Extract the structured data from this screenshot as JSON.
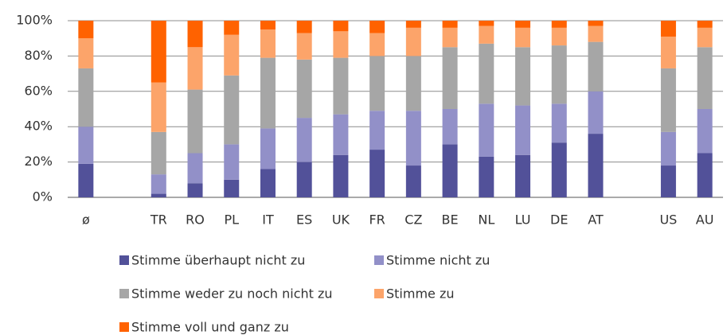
{
  "chart_data": {
    "type": "bar",
    "stacked": true,
    "categories": [
      "ø",
      null,
      "TR",
      "RO",
      "PL",
      "IT",
      "ES",
      "UK",
      "FR",
      "CZ",
      "BE",
      "NL",
      "LU",
      "DE",
      "AT",
      null,
      "US",
      "AU"
    ],
    "series": [
      {
        "name": "Stimme überhaupt nicht zu",
        "color": "#525199",
        "values": [
          19,
          null,
          2,
          8,
          10,
          16,
          20,
          24,
          27,
          18,
          30,
          23,
          24,
          31,
          36,
          null,
          18,
          25
        ]
      },
      {
        "name": "Stimme nicht zu",
        "color": "#9290c8",
        "values": [
          21,
          null,
          11,
          17,
          20,
          23,
          25,
          23,
          22,
          31,
          20,
          30,
          28,
          22,
          24,
          null,
          19,
          25
        ]
      },
      {
        "name": "Stimme weder zu noch nicht zu",
        "color": "#a6a6a6",
        "values": [
          33,
          null,
          24,
          36,
          39,
          40,
          33,
          32,
          31,
          31,
          35,
          34,
          33,
          33,
          28,
          null,
          36,
          35
        ]
      },
      {
        "name": "Stimme zu",
        "color": "#fca46a",
        "values": [
          17,
          null,
          28,
          24,
          23,
          16,
          15,
          15,
          13,
          16,
          11,
          10,
          11,
          10,
          9,
          null,
          18,
          11
        ]
      },
      {
        "name": "Stimme voll und ganz zu",
        "color": "#ff6200",
        "values": [
          10,
          null,
          35,
          15,
          8,
          5,
          7,
          6,
          7,
          4,
          4,
          3,
          4,
          4,
          3,
          null,
          9,
          4
        ]
      }
    ],
    "ylim": [
      0,
      100
    ],
    "yticks": [
      {
        "value": 0,
        "label": "0%"
      },
      {
        "value": 20,
        "label": "20%"
      },
      {
        "value": 40,
        "label": "40%"
      },
      {
        "value": 60,
        "label": "60%"
      },
      {
        "value": 80,
        "label": "80%"
      },
      {
        "value": 100,
        "label": "100%"
      }
    ],
    "grid": true
  }
}
